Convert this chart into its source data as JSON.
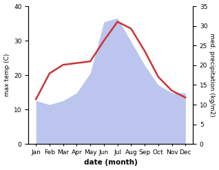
{
  "months": [
    "Jan",
    "Feb",
    "Mar",
    "Apr",
    "May",
    "Jun",
    "Jul",
    "Aug",
    "Sep",
    "Oct",
    "Nov",
    "Dec"
  ],
  "max_temp": [
    13.0,
    20.5,
    23.0,
    23.5,
    24.0,
    30.0,
    35.5,
    33.5,
    27.0,
    19.5,
    15.5,
    13.5
  ],
  "precipitation": [
    11.0,
    10.0,
    11.0,
    13.0,
    18.0,
    31.0,
    32.0,
    26.0,
    20.0,
    15.0,
    13.0,
    13.0
  ],
  "temp_color": "#cc3333",
  "precip_color": "#bbc5ee",
  "left_ylim": [
    0,
    40
  ],
  "right_ylim": [
    0,
    35
  ],
  "left_yticks": [
    0,
    10,
    20,
    30,
    40
  ],
  "right_yticks": [
    0,
    5,
    10,
    15,
    20,
    25,
    30,
    35
  ],
  "ylabel_left": "max temp (C)",
  "ylabel_right": "med. precipitation (kg/m2)",
  "xlabel": "date (month)",
  "bg_color": "#ffffff",
  "line_width": 1.8
}
